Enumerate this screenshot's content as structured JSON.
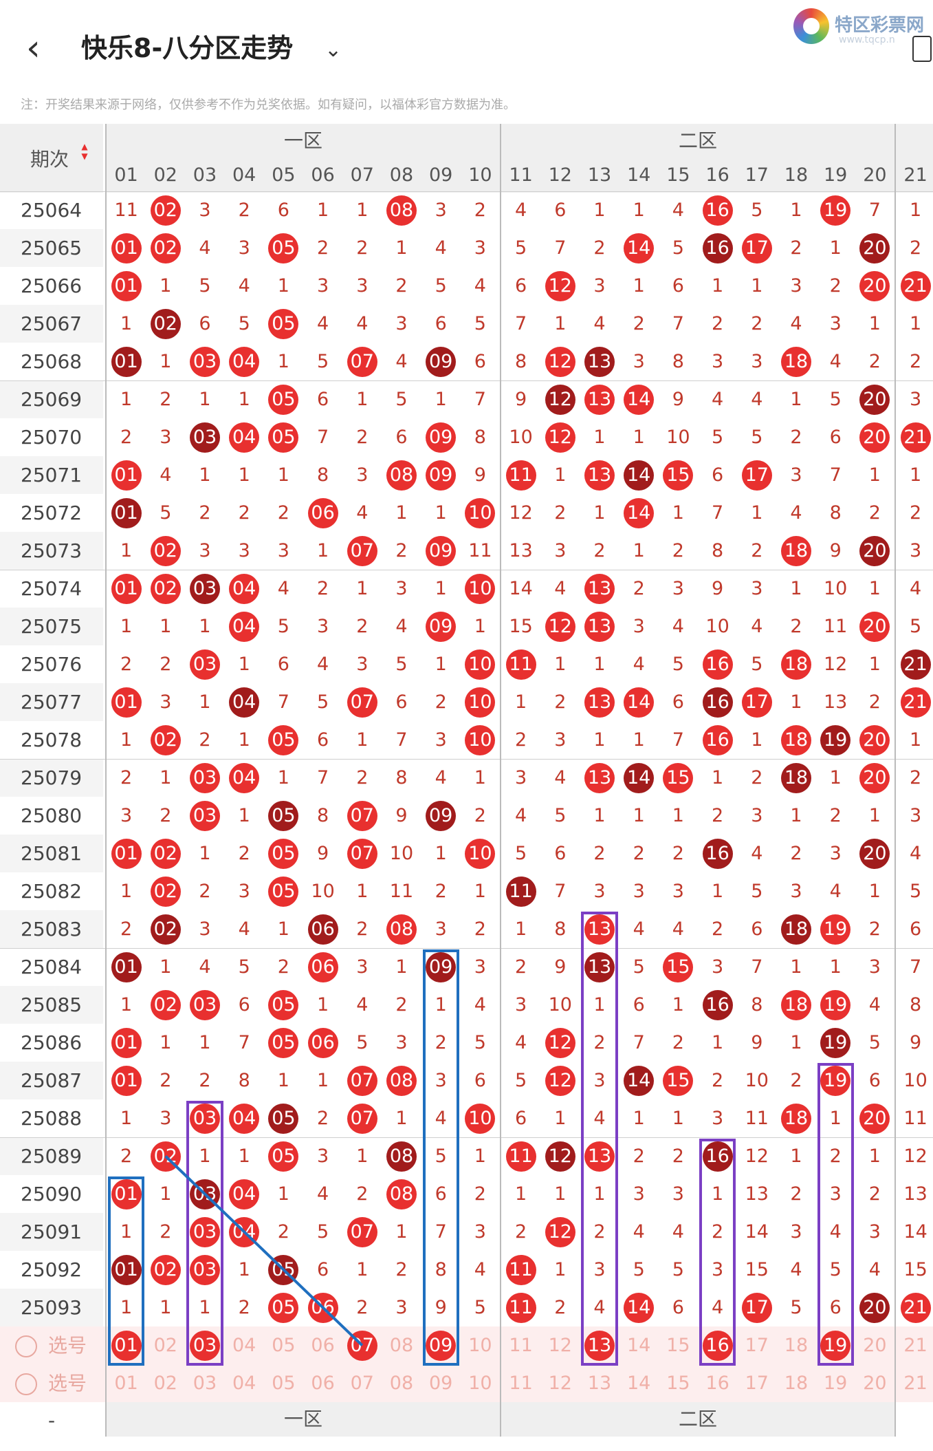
{
  "header": {
    "back_icon": "chevron-left-icon",
    "title": "快乐8-八分区走势",
    "dropdown_icon": "chevron-down-icon",
    "brand": "特区彩票网",
    "brand_url": "www.tqcp.n",
    "note": "注：开奖结果来源于网络，仅供参考不作为兑奖依据。如有疑问，以福体彩官方数据为准。"
  },
  "table": {
    "period_header": "期次",
    "zones": [
      "一区",
      "二区"
    ],
    "columns": [
      "01",
      "02",
      "03",
      "04",
      "05",
      "06",
      "07",
      "08",
      "09",
      "10",
      "11",
      "12",
      "13",
      "14",
      "15",
      "16",
      "17",
      "18",
      "19",
      "20",
      "21"
    ],
    "rows": [
      {
        "p": "25064",
        "v": [
          "11",
          "02",
          "3",
          "2",
          "6",
          "1",
          "1",
          "08",
          "3",
          "2",
          "4",
          "6",
          "1",
          "1",
          "4",
          "16",
          "5",
          "1",
          "19",
          "7",
          "1"
        ]
      },
      {
        "p": "25065",
        "v": [
          "01",
          "02",
          "4",
          "3",
          "05",
          "2",
          "2",
          "1",
          "4",
          "3",
          "5",
          "7",
          "2",
          "14",
          "5",
          "16",
          "17",
          "2",
          "1",
          "20",
          "2"
        ]
      },
      {
        "p": "25066",
        "v": [
          "01",
          "1",
          "5",
          "4",
          "1",
          "3",
          "3",
          "2",
          "5",
          "4",
          "6",
          "12",
          "3",
          "1",
          "6",
          "1",
          "1",
          "3",
          "2",
          "20",
          "21"
        ]
      },
      {
        "p": "25067",
        "v": [
          "1",
          "02",
          "6",
          "5",
          "05",
          "4",
          "4",
          "3",
          "6",
          "5",
          "7",
          "1",
          "4",
          "2",
          "7",
          "2",
          "2",
          "4",
          "3",
          "1",
          "1"
        ]
      },
      {
        "p": "25068",
        "v": [
          "01",
          "1",
          "03",
          "04",
          "1",
          "5",
          "07",
          "4",
          "09",
          "6",
          "8",
          "12",
          "13",
          "3",
          "8",
          "3",
          "3",
          "18",
          "4",
          "2",
          "2"
        ]
      },
      {
        "p": "25069",
        "v": [
          "1",
          "2",
          "1",
          "1",
          "05",
          "6",
          "1",
          "5",
          "1",
          "7",
          "9",
          "12",
          "13",
          "14",
          "9",
          "4",
          "4",
          "1",
          "5",
          "20",
          "3"
        ]
      },
      {
        "p": "25070",
        "v": [
          "2",
          "3",
          "03",
          "04",
          "05",
          "7",
          "2",
          "6",
          "09",
          "8",
          "10",
          "12",
          "1",
          "1",
          "10",
          "5",
          "5",
          "2",
          "6",
          "20",
          "21"
        ]
      },
      {
        "p": "25071",
        "v": [
          "01",
          "4",
          "1",
          "1",
          "1",
          "8",
          "3",
          "08",
          "09",
          "9",
          "11",
          "1",
          "13",
          "14",
          "15",
          "6",
          "17",
          "3",
          "7",
          "1",
          "1"
        ]
      },
      {
        "p": "25072",
        "v": [
          "01",
          "5",
          "2",
          "2",
          "2",
          "06",
          "4",
          "1",
          "1",
          "10",
          "12",
          "2",
          "1",
          "14",
          "1",
          "7",
          "1",
          "4",
          "8",
          "2",
          "2"
        ]
      },
      {
        "p": "25073",
        "v": [
          "1",
          "02",
          "3",
          "3",
          "3",
          "1",
          "07",
          "2",
          "09",
          "11",
          "13",
          "3",
          "2",
          "1",
          "2",
          "8",
          "2",
          "18",
          "9",
          "20",
          "3"
        ]
      },
      {
        "p": "25074",
        "v": [
          "01",
          "02",
          "03",
          "04",
          "4",
          "2",
          "1",
          "3",
          "1",
          "10",
          "14",
          "4",
          "13",
          "2",
          "3",
          "9",
          "3",
          "1",
          "10",
          "1",
          "4"
        ]
      },
      {
        "p": "25075",
        "v": [
          "1",
          "1",
          "1",
          "04",
          "5",
          "3",
          "2",
          "4",
          "09",
          "1",
          "15",
          "12",
          "13",
          "3",
          "4",
          "10",
          "4",
          "2",
          "11",
          "20",
          "5"
        ]
      },
      {
        "p": "25076",
        "v": [
          "2",
          "2",
          "03",
          "1",
          "6",
          "4",
          "3",
          "5",
          "1",
          "10",
          "11",
          "1",
          "1",
          "4",
          "5",
          "16",
          "5",
          "18",
          "12",
          "1",
          "21"
        ]
      },
      {
        "p": "25077",
        "v": [
          "01",
          "3",
          "1",
          "04",
          "7",
          "5",
          "07",
          "6",
          "2",
          "10",
          "1",
          "2",
          "13",
          "14",
          "6",
          "16",
          "17",
          "1",
          "13",
          "2",
          "21"
        ]
      },
      {
        "p": "25078",
        "v": [
          "1",
          "02",
          "2",
          "1",
          "05",
          "6",
          "1",
          "7",
          "3",
          "10",
          "2",
          "3",
          "1",
          "1",
          "7",
          "16",
          "1",
          "18",
          "19",
          "20",
          "1"
        ]
      },
      {
        "p": "25079",
        "v": [
          "2",
          "1",
          "03",
          "04",
          "1",
          "7",
          "2",
          "8",
          "4",
          "1",
          "3",
          "4",
          "13",
          "14",
          "15",
          "1",
          "2",
          "18",
          "1",
          "20",
          "2"
        ]
      },
      {
        "p": "25080",
        "v": [
          "3",
          "2",
          "03",
          "1",
          "05",
          "8",
          "07",
          "9",
          "09",
          "2",
          "4",
          "5",
          "1",
          "1",
          "1",
          "2",
          "3",
          "1",
          "2",
          "1",
          "3"
        ]
      },
      {
        "p": "25081",
        "v": [
          "01",
          "02",
          "1",
          "2",
          "05",
          "9",
          "07",
          "10",
          "1",
          "10",
          "5",
          "6",
          "2",
          "2",
          "2",
          "16",
          "4",
          "2",
          "3",
          "20",
          "4"
        ]
      },
      {
        "p": "25082",
        "v": [
          "1",
          "02",
          "2",
          "3",
          "05",
          "10",
          "1",
          "11",
          "2",
          "1",
          "11",
          "7",
          "3",
          "3",
          "3",
          "1",
          "5",
          "3",
          "4",
          "1",
          "5"
        ]
      },
      {
        "p": "25083",
        "v": [
          "2",
          "02",
          "3",
          "4",
          "1",
          "06",
          "2",
          "08",
          "3",
          "2",
          "1",
          "8",
          "13",
          "4",
          "4",
          "2",
          "6",
          "18",
          "19",
          "2",
          "6"
        ]
      },
      {
        "p": "25084",
        "v": [
          "01",
          "1",
          "4",
          "5",
          "2",
          "06",
          "3",
          "1",
          "09",
          "3",
          "2",
          "9",
          "13",
          "5",
          "15",
          "3",
          "7",
          "1",
          "1",
          "3",
          "7"
        ]
      },
      {
        "p": "25085",
        "v": [
          "1",
          "02",
          "03",
          "6",
          "05",
          "1",
          "4",
          "2",
          "1",
          "4",
          "3",
          "10",
          "1",
          "6",
          "1",
          "16",
          "8",
          "18",
          "19",
          "4",
          "8"
        ]
      },
      {
        "p": "25086",
        "v": [
          "01",
          "1",
          "1",
          "7",
          "05",
          "06",
          "5",
          "3",
          "2",
          "5",
          "4",
          "12",
          "2",
          "7",
          "2",
          "1",
          "9",
          "1",
          "19",
          "5",
          "9"
        ]
      },
      {
        "p": "25087",
        "v": [
          "01",
          "2",
          "2",
          "8",
          "1",
          "1",
          "07",
          "08",
          "3",
          "6",
          "5",
          "12",
          "3",
          "14",
          "15",
          "2",
          "10",
          "2",
          "19",
          "6",
          "10"
        ]
      },
      {
        "p": "25088",
        "v": [
          "1",
          "3",
          "03",
          "04",
          "05",
          "2",
          "07",
          "1",
          "4",
          "10",
          "6",
          "1",
          "4",
          "1",
          "1",
          "3",
          "11",
          "18",
          "1",
          "20",
          "11"
        ]
      },
      {
        "p": "25089",
        "v": [
          "2",
          "02",
          "1",
          "1",
          "05",
          "3",
          "1",
          "08",
          "5",
          "1",
          "11",
          "12",
          "13",
          "2",
          "2",
          "16",
          "12",
          "1",
          "2",
          "1",
          "12"
        ]
      },
      {
        "p": "25090",
        "v": [
          "01",
          "1",
          "03",
          "04",
          "1",
          "4",
          "2",
          "08",
          "6",
          "2",
          "1",
          "1",
          "1",
          "3",
          "3",
          "1",
          "13",
          "2",
          "3",
          "2",
          "13"
        ]
      },
      {
        "p": "25091",
        "v": [
          "1",
          "2",
          "03",
          "04",
          "2",
          "5",
          "07",
          "1",
          "7",
          "3",
          "2",
          "12",
          "2",
          "4",
          "4",
          "2",
          "14",
          "3",
          "4",
          "3",
          "14"
        ]
      },
      {
        "p": "25092",
        "v": [
          "01",
          "02",
          "03",
          "1",
          "05",
          "6",
          "1",
          "2",
          "8",
          "4",
          "11",
          "1",
          "3",
          "5",
          "5",
          "3",
          "15",
          "4",
          "5",
          "4",
          "15"
        ]
      },
      {
        "p": "25093",
        "v": [
          "1",
          "1",
          "1",
          "2",
          "05",
          "06",
          "2",
          "3",
          "9",
          "5",
          "11",
          "2",
          "4",
          "14",
          "6",
          "4",
          "17",
          "5",
          "6",
          "20",
          "21"
        ]
      }
    ],
    "select_label": "选号",
    "selected_1": [
      "01",
      "03",
      "07",
      "09",
      "13",
      "16",
      "19"
    ],
    "footer_zones": [
      "一区",
      "二区"
    ],
    "footer_period": "-"
  }
}
